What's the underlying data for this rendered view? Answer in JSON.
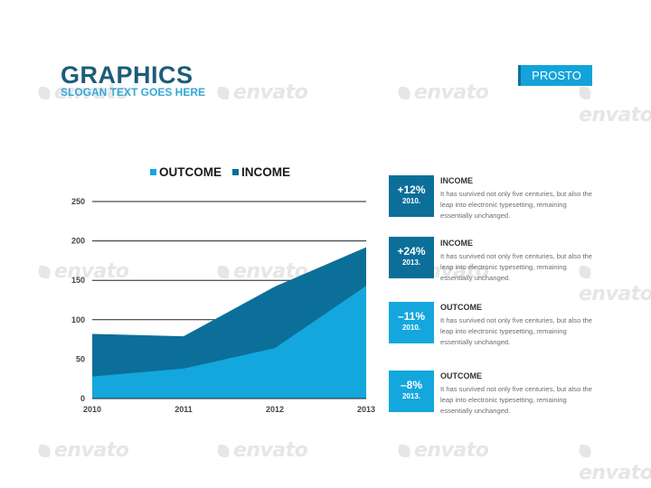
{
  "header": {
    "title": "GRAPHICS",
    "subtitle": "SLOGAN TEXT GOES HERE",
    "badge_label": "PROSTO"
  },
  "watermark_text": "envato",
  "colors": {
    "outcome": "#14a7dd",
    "income": "#0b6f99",
    "title": "#1c5d79",
    "subtitle": "#35a7d6"
  },
  "chart_data": {
    "type": "area",
    "x": [
      "2010",
      "2011",
      "2012",
      "2013"
    ],
    "series": [
      {
        "name": "OUTCOME",
        "values": [
          28,
          38,
          64,
          143
        ]
      },
      {
        "name": "INCOME",
        "values": [
          82,
          79,
          142,
          192
        ]
      }
    ],
    "ylim": [
      0,
      250
    ],
    "yticks": [
      0,
      50,
      100,
      150,
      200,
      250
    ],
    "grid": true,
    "legend": "top"
  },
  "cards": [
    {
      "pct": "+12%",
      "year": "2010.",
      "heading": "INCOME",
      "color": "#0b6f99",
      "text": "It has survived not only five centuries, but also the leap into electronic typesetting, remaining essentially unchanged."
    },
    {
      "pct": "+24%",
      "year": "2013.",
      "heading": "INCOME",
      "color": "#0b6f99",
      "text": "It has survived not only five centuries, but also the leap into electronic typesetting, remaining essentially unchanged."
    },
    {
      "pct": "–11%",
      "year": "2010.",
      "heading": "OUTCOME",
      "color": "#14a7dd",
      "text": "It has survived not only five centuries, but also the leap into electronic typesetting, remaining essentially unchanged."
    },
    {
      "pct": "–8%",
      "year": "2013.",
      "heading": "OUTCOME",
      "color": "#14a7dd",
      "text": "It has survived not only five centuries, but also the leap into electronic typesetting, remaining essentially unchanged."
    }
  ]
}
